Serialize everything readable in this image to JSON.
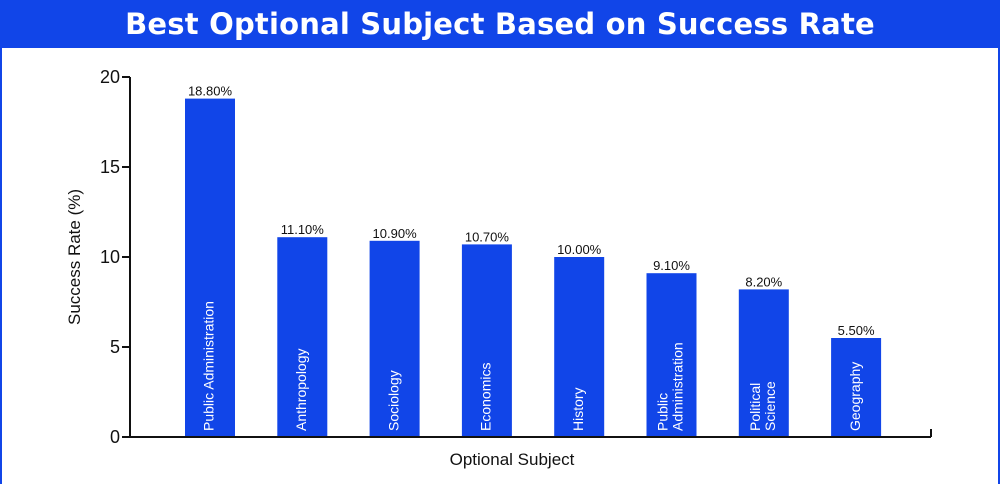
{
  "colors": {
    "header_bg": "#1145e8",
    "bar": "#1145e8",
    "axis": "#111111"
  },
  "chart_data": {
    "type": "bar",
    "title": "Best Optional Subject Based on Success Rate",
    "xlabel": "Optional Subject",
    "ylabel": "Success Rate (%)",
    "ylim": [
      0,
      20
    ],
    "yticks": [
      0,
      5,
      10,
      15,
      20
    ],
    "grid": false,
    "legend": "none",
    "categories": [
      [
        "Public Administration"
      ],
      [
        "Anthropology"
      ],
      [
        "Sociology"
      ],
      [
        "Economics"
      ],
      [
        "History"
      ],
      [
        "Public",
        "Administration"
      ],
      [
        "Political",
        "Science"
      ],
      [
        "Geography"
      ]
    ],
    "values": [
      18.8,
      11.1,
      10.9,
      10.7,
      10.0,
      9.1,
      8.2,
      5.5
    ],
    "data_labels": [
      "18.80%",
      "11.10%",
      "10.90%",
      "10.70%",
      "10.00%",
      "9.10%",
      "8.20%",
      "5.50%"
    ]
  }
}
